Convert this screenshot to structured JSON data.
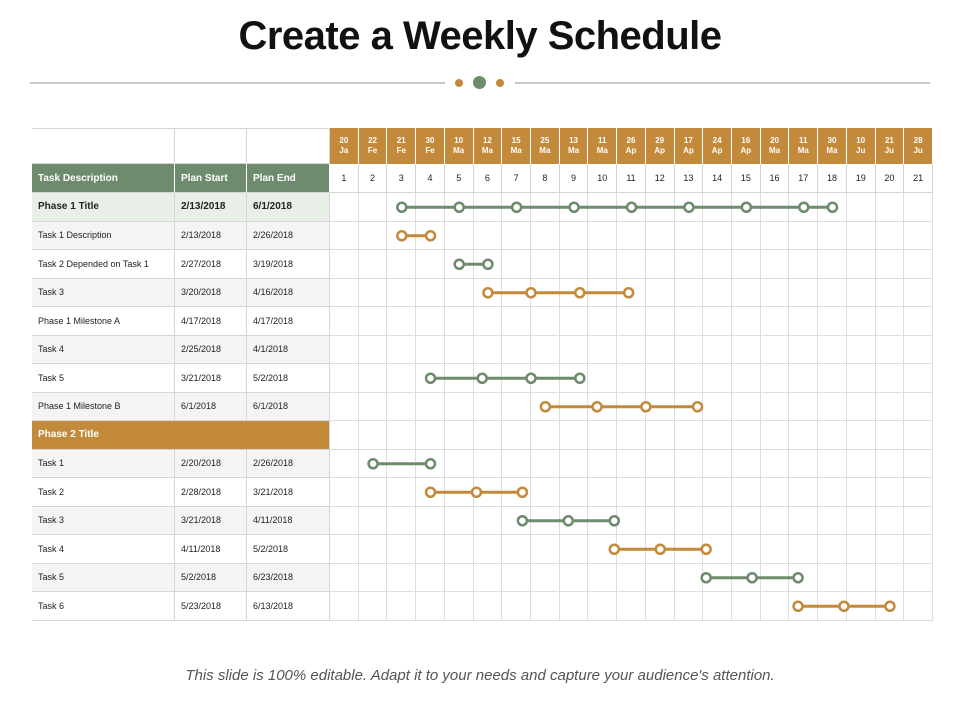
{
  "title": "Create a Weekly Schedule",
  "footer": "This slide is 100% editable. Adapt it to your needs and capture your audience's attention.",
  "colors": {
    "green": "#6e8b6e",
    "orange": "#c48a3c",
    "header_green": "#6e8b6e",
    "phase_light": "#e8efe6",
    "row_alt": "#f4f4f4"
  },
  "chart_data": {
    "type": "gantt",
    "columns": {
      "task": "Task Description",
      "start": "Plan Start",
      "end": "Plan End"
    },
    "date_labels": [
      [
        "20",
        "Ja"
      ],
      [
        "22",
        "Fe"
      ],
      [
        "21",
        "Fe"
      ],
      [
        "30",
        "Fe"
      ],
      [
        "10",
        "Ma"
      ],
      [
        "12",
        "Ma"
      ],
      [
        "15",
        "Ma"
      ],
      [
        "25",
        "Ma"
      ],
      [
        "13",
        "Ma"
      ],
      [
        "11",
        "Ma"
      ],
      [
        "26",
        "Ap"
      ],
      [
        "29",
        "Ap"
      ],
      [
        "17",
        "Ap"
      ],
      [
        "24",
        "Ap"
      ],
      [
        "16",
        "Ap"
      ],
      [
        "20",
        "Ma"
      ],
      [
        "11",
        "Ma"
      ],
      [
        "30",
        "Ma"
      ],
      [
        "10",
        "Ju"
      ],
      [
        "21",
        "Ju"
      ],
      [
        "28",
        "Ju"
      ]
    ],
    "weeks": [
      "1",
      "2",
      "3",
      "4",
      "5",
      "6",
      "7",
      "8",
      "9",
      "10",
      "11",
      "12",
      "13",
      "14",
      "15",
      "16",
      "17",
      "18",
      "19",
      "20",
      "21"
    ],
    "rows": [
      {
        "task": "Phase 1 Title",
        "start": "2/13/2018",
        "end": "6/1/2018",
        "kind": "phase1",
        "bar": {
          "from": 3,
          "to": 18,
          "color": "green",
          "markers": [
            3,
            5,
            7,
            9,
            11,
            13,
            15,
            17,
            18
          ]
        }
      },
      {
        "task": "Task 1 Description",
        "start": "2/13/2018",
        "end": "2/26/2018",
        "kind": "task",
        "bar": {
          "from": 3,
          "to": 4,
          "color": "orange",
          "markers": [
            3,
            4
          ]
        }
      },
      {
        "task": "Task 2 Depended on Task 1",
        "start": "2/27/2018",
        "end": "3/19/2018",
        "kind": "task",
        "bar": {
          "from": 5,
          "to": 6,
          "color": "green",
          "markers": [
            5,
            6
          ]
        }
      },
      {
        "task": "Task 3",
        "start": "3/20/2018",
        "end": "4/16/2018",
        "kind": "task",
        "bar": {
          "from": 6,
          "to": 10,
          "color": "orange",
          "markers": [
            6,
            7.5,
            9.2,
            10.9
          ]
        }
      },
      {
        "task": "Phase 1 Milestone A",
        "start": "4/17/2018",
        "end": "4/17/2018",
        "kind": "task"
      },
      {
        "task": "Task 4",
        "start": "2/25/2018",
        "end": "4/1/2018",
        "kind": "task"
      },
      {
        "task": "Task 5",
        "start": "3/21/2018",
        "end": "5/2/2018",
        "kind": "task",
        "bar": {
          "from": 4,
          "to": 9,
          "color": "green",
          "markers": [
            4,
            5.8,
            7.5,
            9.2
          ]
        }
      },
      {
        "task": "Phase 1 Milestone B",
        "start": "6/1/2018",
        "end": "6/1/2018",
        "kind": "task",
        "bar": {
          "from": 8,
          "to": 13,
          "color": "orange",
          "markers": [
            8,
            9.8,
            11.5,
            13.3
          ]
        }
      },
      {
        "task": "Phase 2 Title",
        "start": "",
        "end": "",
        "kind": "phase2"
      },
      {
        "task": "Task 1",
        "start": "2/20/2018",
        "end": "2/26/2018",
        "kind": "task",
        "bar": {
          "from": 2,
          "to": 4,
          "color": "green",
          "markers": [
            2,
            4
          ]
        }
      },
      {
        "task": "Task 2",
        "start": "2/28/2018",
        "end": "3/21/2018",
        "kind": "task",
        "bar": {
          "from": 4,
          "to": 7,
          "color": "orange",
          "markers": [
            4,
            5.6,
            7.2
          ]
        }
      },
      {
        "task": "Task 3",
        "start": "3/21/2018",
        "end": "4/11/2018",
        "kind": "task",
        "bar": {
          "from": 7,
          "to": 10,
          "color": "green",
          "markers": [
            7.2,
            8.8,
            10.4
          ]
        }
      },
      {
        "task": "Task 4",
        "start": "4/11/2018",
        "end": "5/2/2018",
        "kind": "task",
        "bar": {
          "from": 10,
          "to": 13,
          "color": "orange",
          "markers": [
            10.4,
            12,
            13.6
          ]
        }
      },
      {
        "task": "Task 5",
        "start": "5/2/2018",
        "end": "6/23/2018",
        "kind": "task",
        "bar": {
          "from": 13,
          "to": 16,
          "color": "green",
          "markers": [
            13.6,
            15.2,
            16.8
          ]
        }
      },
      {
        "task": "Task 6",
        "start": "5/23/2018",
        "end": "6/13/2018",
        "kind": "task",
        "bar": {
          "from": 16,
          "to": 19,
          "color": "orange",
          "markers": [
            16.8,
            18.4,
            20
          ]
        }
      }
    ]
  }
}
